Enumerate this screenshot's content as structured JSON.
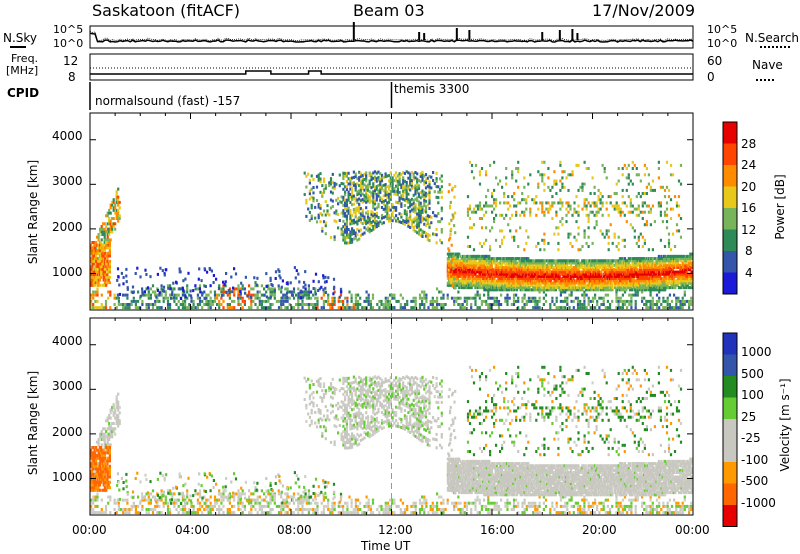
{
  "header": {
    "station": "Saskatoon (fitACF)",
    "beam": "Beam 03",
    "date": "17/Nov/2009"
  },
  "noise_panel": {
    "left_label": "N.Sky",
    "right_label": "N.Search",
    "left_ticks": [
      "10^5",
      "10^0"
    ],
    "right_ticks": [
      "10^5",
      "10^0"
    ]
  },
  "freq_panel": {
    "left_label_1": "Freq.",
    "left_label_2": "[MHz]",
    "left_ticks": [
      "12",
      "8"
    ],
    "right_label": "Nave",
    "right_ticks": [
      "60",
      "0"
    ]
  },
  "cpid_panel": {
    "label": "CPID",
    "programs": [
      {
        "name": "normalsound (fast) -157",
        "start_hour": 0
      },
      {
        "name": "themis 3300",
        "start_hour": 12
      }
    ]
  },
  "power_panel": {
    "ylabel": "Slant Range [km]",
    "yticks": [
      "1000",
      "2000",
      "3000",
      "4000"
    ],
    "colorbar_label": "Power [dB]",
    "colorbar_ticks": [
      "4",
      "8",
      "12",
      "16",
      "20",
      "24",
      "28"
    ],
    "colors": [
      "#1a1ad8",
      "#3355aa",
      "#2e8b57",
      "#78b45a",
      "#e8c81a",
      "#ff8c00",
      "#ff4500",
      "#e60000"
    ]
  },
  "velocity_panel": {
    "ylabel": "Slant Range [km]",
    "yticks": [
      "1000",
      "2000",
      "3000",
      "4000"
    ],
    "colorbar_label": "Velocity [m s⁻¹]",
    "colorbar_ticks": [
      "1000",
      "500",
      "100",
      "25",
      "-25",
      "-100",
      "-500",
      "-1000"
    ],
    "colors": [
      "#2233bb",
      "#3355aa",
      "#228b22",
      "#66cc33",
      "#c8c8c0",
      "#c8c8c0",
      "#ff9900",
      "#ff6600",
      "#e60000"
    ]
  },
  "xaxis": {
    "label": "Time UT",
    "ticks": [
      "00:00",
      "04:00",
      "08:00",
      "12:00",
      "16:00",
      "20:00",
      "00:00"
    ]
  },
  "chart_data": {
    "type": "heatmap",
    "title": "Saskatoon (fitACF)",
    "x_unit": "hours UT",
    "x_range": [
      0,
      24
    ],
    "y_range_km": [
      180,
      4600
    ],
    "power_db_range": [
      0,
      30
    ],
    "velocity_range": [
      -1000,
      1000
    ],
    "echo_regions": [
      {
        "name": "near-range ground scatter",
        "t": [
          0,
          24
        ],
        "r": [
          200,
          700
        ]
      },
      {
        "name": "early loop",
        "t": [
          0,
          1.2
        ],
        "r": [
          700,
          2900
        ]
      },
      {
        "name": "midday patch",
        "t": [
          8.5,
          14
        ],
        "r": [
          1800,
          3300
        ]
      },
      {
        "name": "evening 1 hop",
        "t": [
          14.2,
          24
        ],
        "r": [
          700,
          1400
        ]
      },
      {
        "name": "evening upper",
        "t": [
          15,
          23.5
        ],
        "r": [
          1500,
          3500
        ]
      }
    ]
  }
}
